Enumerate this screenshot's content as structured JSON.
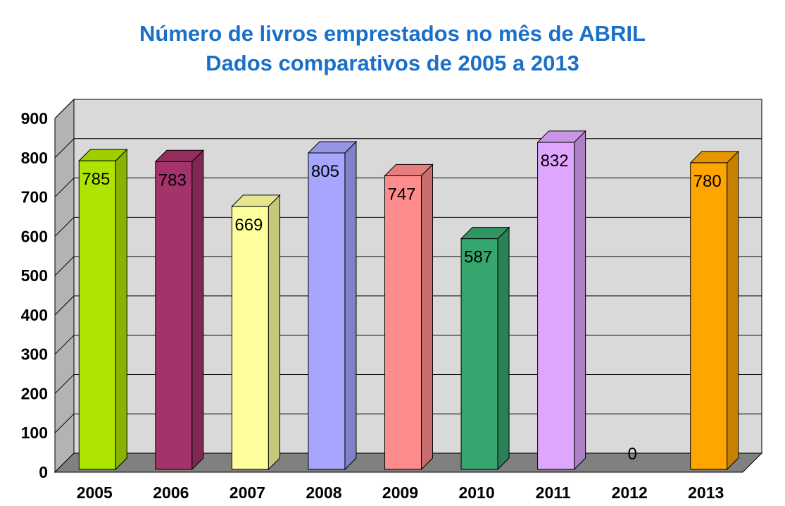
{
  "chart_data": {
    "type": "bar",
    "title": "Número de livros emprestados no mês de ABRIL",
    "subtitle": "Dados comparativos de 2005 a 2013",
    "categories": [
      "2005",
      "2006",
      "2007",
      "2008",
      "2009",
      "2010",
      "2011",
      "2012",
      "2013"
    ],
    "values": [
      785,
      783,
      669,
      805,
      747,
      587,
      832,
      0,
      780
    ],
    "data_labels": [
      "785",
      "783",
      "669",
      "805",
      "747",
      "587",
      "832",
      "0",
      "780"
    ],
    "bar_colors": [
      "#aee500",
      "#a3336a",
      "#ffff9e",
      "#a6a6ff",
      "#ff8c8c",
      "#36a56e",
      "#dfa6ff",
      "#cccccc",
      "#ffa500"
    ],
    "ylim": [
      0,
      900
    ],
    "yticks": [
      "0",
      "100",
      "200",
      "300",
      "400",
      "500",
      "600",
      "700",
      "800",
      "900"
    ],
    "grid": true,
    "legend": "none",
    "plot_background": "#d9d9d9",
    "floor_color": "#808080"
  }
}
